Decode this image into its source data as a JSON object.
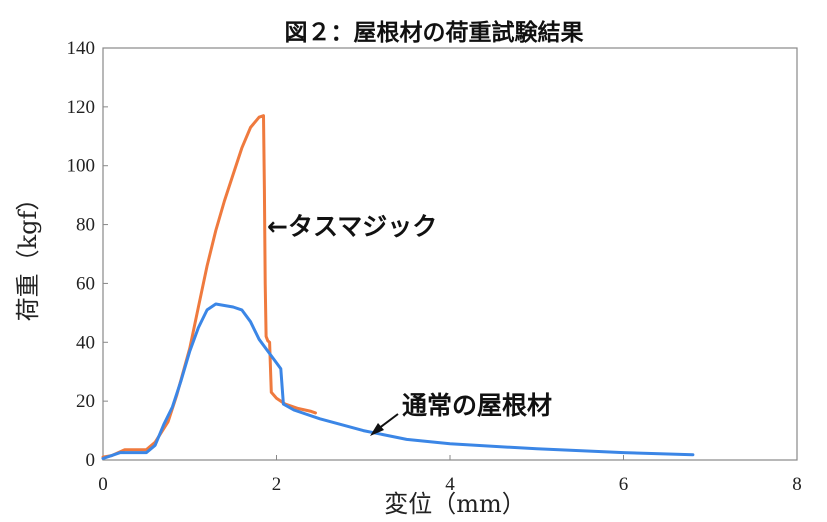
{
  "chart_data": {
    "type": "line",
    "title": "図２：屋根材の荷重試験結果",
    "xlabel": "変位（mm）",
    "ylabel": "荷重（kgf）",
    "xlim": [
      0,
      8
    ],
    "ylim": [
      0,
      140
    ],
    "x_ticks": [
      "0",
      "2",
      "4",
      "6",
      "8"
    ],
    "y_ticks": [
      "0",
      "20",
      "40",
      "60",
      "80",
      "100",
      "120",
      "140"
    ],
    "grid": false,
    "series": [
      {
        "name": "タスマジック",
        "color": "#ef7a3e",
        "points": [
          [
            0,
            1
          ],
          [
            0.1,
            1.5
          ],
          [
            0.25,
            3.5
          ],
          [
            0.5,
            3.5
          ],
          [
            0.6,
            6
          ],
          [
            0.75,
            13
          ],
          [
            0.85,
            22
          ],
          [
            1.0,
            38
          ],
          [
            1.1,
            52
          ],
          [
            1.2,
            66
          ],
          [
            1.3,
            78
          ],
          [
            1.4,
            88
          ],
          [
            1.5,
            97
          ],
          [
            1.6,
            106
          ],
          [
            1.7,
            113
          ],
          [
            1.8,
            116.5
          ],
          [
            1.85,
            117
          ],
          [
            1.86,
            92
          ],
          [
            1.87,
            60
          ],
          [
            1.88,
            42
          ],
          [
            1.9,
            40.5
          ],
          [
            1.92,
            40
          ],
          [
            1.94,
            23
          ],
          [
            2.0,
            21
          ],
          [
            2.1,
            19
          ],
          [
            2.25,
            17.5
          ],
          [
            2.4,
            16.5
          ],
          [
            2.45,
            16
          ]
        ]
      },
      {
        "name": "通常の屋根材",
        "color": "#3b86e6",
        "points": [
          [
            0,
            0.5
          ],
          [
            0.2,
            2.5
          ],
          [
            0.5,
            2.5
          ],
          [
            0.6,
            5
          ],
          [
            0.7,
            12
          ],
          [
            0.8,
            18
          ],
          [
            0.9,
            27
          ],
          [
            1.0,
            37
          ],
          [
            1.1,
            45
          ],
          [
            1.2,
            51
          ],
          [
            1.3,
            53
          ],
          [
            1.4,
            52.5
          ],
          [
            1.5,
            52
          ],
          [
            1.6,
            51
          ],
          [
            1.7,
            47
          ],
          [
            1.8,
            41
          ],
          [
            1.9,
            37
          ],
          [
            2.0,
            33
          ],
          [
            2.05,
            31
          ],
          [
            2.08,
            19
          ],
          [
            2.2,
            17
          ],
          [
            2.5,
            14
          ],
          [
            3.0,
            10
          ],
          [
            3.5,
            7
          ],
          [
            4.0,
            5.5
          ],
          [
            5.0,
            3.8
          ],
          [
            6.0,
            2.5
          ],
          [
            6.8,
            1.8
          ]
        ]
      }
    ],
    "annotations": [
      {
        "text": "←タスマジック"
      },
      {
        "text": "通常の屋根材"
      }
    ]
  }
}
